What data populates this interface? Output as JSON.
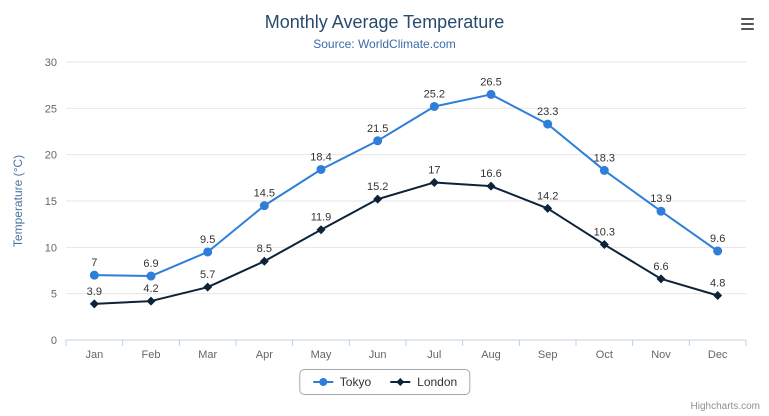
{
  "credits": "Highcharts.com",
  "colors": {
    "title": "#274b6d",
    "subtitle": "#3d6ba8",
    "axis_title": "#4d759e",
    "tick_label": "#666666",
    "data_label": "#333333",
    "grid": "#e6e6e6",
    "axis_line": "#c0d0e0",
    "legend_text": "#333333"
  },
  "chart_data": {
    "type": "line",
    "title": "Monthly Average Temperature",
    "subtitle": "Source: WorldClimate.com",
    "ylabel": "Temperature (°C)",
    "xlabel": "",
    "ylim": [
      0,
      30
    ],
    "ytick_step": 5,
    "grid": true,
    "legend_position": "bottom-center",
    "categories": [
      "Jan",
      "Feb",
      "Mar",
      "Apr",
      "May",
      "Jun",
      "Jul",
      "Aug",
      "Sep",
      "Oct",
      "Nov",
      "Dec"
    ],
    "series": [
      {
        "name": "Tokyo",
        "color": "#2f7ed8",
        "marker": "circle",
        "values": [
          7,
          6.9,
          9.5,
          14.5,
          18.4,
          21.5,
          25.2,
          26.5,
          23.3,
          18.3,
          13.9,
          9.6
        ]
      },
      {
        "name": "London",
        "color": "#0d233a",
        "marker": "diamond",
        "values": [
          3.9,
          4.2,
          5.7,
          8.5,
          11.9,
          15.2,
          17,
          16.6,
          14.2,
          10.3,
          6.6,
          4.8
        ]
      }
    ]
  }
}
